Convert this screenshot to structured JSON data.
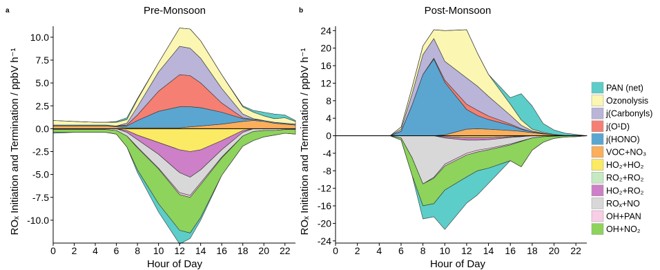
{
  "panels": {
    "a": {
      "letter": "a"
    },
    "b": {
      "letter": "b"
    }
  },
  "legend": {
    "items": [
      {
        "key": "pan",
        "label": "PAN (net)",
        "color": "#5ccdc8"
      },
      {
        "key": "ozo",
        "label": "Ozonolysis",
        "color": "#fbf6b1"
      },
      {
        "key": "carb",
        "label": "j(Carbonyls)",
        "color": "#b9b4d8"
      },
      {
        "key": "o1d",
        "label": "j(O¹D)",
        "color": "#f57f72"
      },
      {
        "key": "hono",
        "label": "j(HONO)",
        "color": "#5aa6d1"
      },
      {
        "key": "vocno3",
        "label": "VOC+NO₃",
        "color": "#fbae5b"
      },
      {
        "key": "ho2ho2",
        "label": "HO₂+HO₂",
        "color": "#fbea63"
      },
      {
        "key": "ro2ro2",
        "label": "RO₂+RO₂",
        "color": "#c6e9c2"
      },
      {
        "key": "ho2ro2",
        "label": "HO₂+RO₂",
        "color": "#cd7fc7"
      },
      {
        "key": "roxno",
        "label": "ROₓ+NO",
        "color": "#d8d8d8"
      },
      {
        "key": "ohpan",
        "label": "OH+PAN",
        "color": "#f8cde6"
      },
      {
        "key": "ohno2",
        "label": "OH+NO₂",
        "color": "#8dd35c"
      }
    ]
  },
  "chart_data": [
    {
      "type": "area",
      "title": "Pre-Monsoon",
      "xlabel": "Hour of Day",
      "ylabel": "ROₓ Initiation and Termination / ppbV h⁻¹",
      "xlim": [
        0,
        23
      ],
      "ylim": [
        -12.5,
        11.2
      ],
      "xticks": [
        0,
        2,
        4,
        6,
        8,
        10,
        12,
        14,
        16,
        18,
        20,
        22
      ],
      "yticks": [
        -10.0,
        -7.5,
        -5.0,
        -2.5,
        0.0,
        2.5,
        5.0,
        7.5,
        10.0
      ],
      "ytick_labels": [
        "-10.0",
        "-7.5",
        "-5.0",
        "-2.5",
        "0.0",
        "2.5",
        "5.0",
        "7.5",
        "10.0"
      ],
      "x": [
        0,
        2,
        4,
        5,
        6,
        7,
        8,
        10,
        12,
        13,
        14,
        16,
        18,
        19,
        20,
        21,
        22,
        23
      ],
      "positive_series": [
        {
          "key": "vocno3",
          "values": [
            0.3,
            0.3,
            0.3,
            0.3,
            0.2,
            0.1,
            0.1,
            0.1,
            0.1,
            0.2,
            0.3,
            0.5,
            0.8,
            0.9,
            0.8,
            0.6,
            0.5,
            0.4
          ]
        },
        {
          "key": "hono",
          "values": [
            0.1,
            0.1,
            0.1,
            0.1,
            0.1,
            0.2,
            0.8,
            1.8,
            2.3,
            2.2,
            2.0,
            1.3,
            0.3,
            0.1,
            0.1,
            0.1,
            0.1,
            0.1
          ]
        },
        {
          "key": "o1d",
          "values": [
            0,
            0,
            0,
            0,
            0,
            0.1,
            0.6,
            2.2,
            3.5,
            3.4,
            2.7,
            1.0,
            0.1,
            0,
            0,
            0,
            0,
            0
          ]
        },
        {
          "key": "carb",
          "values": [
            0,
            0,
            0,
            0,
            0,
            0.2,
            0.9,
            2.1,
            3.1,
            3.0,
            2.7,
            1.6,
            0.4,
            0.1,
            0,
            0,
            0,
            0
          ]
        },
        {
          "key": "ozo",
          "values": [
            0.5,
            0.4,
            0.3,
            0.3,
            0.4,
            0.4,
            0.8,
            1.0,
            2.0,
            2.1,
            1.9,
            1.5,
            0.8,
            0.7,
            0.5,
            0.4,
            0.6,
            0.3
          ]
        },
        {
          "key": "pan",
          "values": [
            0,
            0,
            0,
            0,
            0.1,
            0.2,
            0.1,
            0,
            0,
            0,
            0,
            0,
            0.1,
            0.2,
            0.4,
            0.5,
            0.3,
            0.1
          ]
        }
      ],
      "negative_series": [
        {
          "key": "ho2ho2",
          "values": [
            0,
            0,
            0,
            0,
            0,
            -0.2,
            -0.7,
            -1.5,
            -2.3,
            -2.5,
            -2.3,
            -1.3,
            -0.2,
            0,
            0,
            0,
            0,
            0
          ]
        },
        {
          "key": "ho2ro2",
          "values": [
            0,
            0,
            0,
            0,
            0,
            -0.2,
            -0.5,
            -1.3,
            -2.5,
            -2.8,
            -2.2,
            -1.0,
            -0.2,
            0,
            0,
            0,
            0,
            0
          ]
        },
        {
          "key": "roxno",
          "values": [
            -0.1,
            -0.1,
            -0.1,
            -0.1,
            -0.2,
            -0.4,
            -0.8,
            -1.5,
            -2.2,
            -2.0,
            -1.4,
            -0.8,
            -0.4,
            -0.3,
            -0.2,
            -0.2,
            -0.1,
            -0.1
          ]
        },
        {
          "key": "ohpan",
          "values": [
            0,
            0,
            0,
            0,
            0,
            0,
            -0.1,
            -0.1,
            -0.2,
            -0.2,
            -0.2,
            -0.1,
            0,
            0,
            0,
            0,
            0,
            0
          ]
        },
        {
          "key": "ohno2",
          "values": [
            -0.3,
            -0.3,
            -0.3,
            -0.3,
            -0.4,
            -1.2,
            -2.4,
            -3.8,
            -3.9,
            -3.9,
            -3.6,
            -1.9,
            -1.1,
            -1.0,
            -0.7,
            -0.5,
            -0.4,
            -0.5
          ]
        },
        {
          "key": "pan",
          "values": [
            -0.1,
            0,
            0,
            0,
            0,
            0,
            -0.3,
            -0.9,
            -1.5,
            -0.6,
            -0.3,
            0,
            0,
            0,
            0,
            0,
            0,
            0
          ]
        }
      ]
    },
    {
      "type": "area",
      "title": "Post-Monsoon",
      "xlabel": "Hour of Day",
      "ylabel": "ROₓ Initiation and Termination / ppbV h⁻¹",
      "xlim": [
        0,
        23
      ],
      "ylim": [
        -24.5,
        25
      ],
      "xticks": [
        0,
        2,
        4,
        6,
        8,
        10,
        12,
        14,
        16,
        18,
        20,
        22
      ],
      "yticks": [
        -24,
        -20,
        -16,
        -12,
        -8,
        -4,
        0,
        4,
        8,
        12,
        16,
        20,
        24
      ],
      "ytick_labels": [
        "-24",
        "-20",
        "-16",
        "-12",
        "-8",
        "-4",
        "0",
        "4",
        "8",
        "12",
        "16",
        "20",
        "24"
      ],
      "x": [
        0,
        2,
        4,
        5,
        6,
        7,
        8,
        9,
        10,
        12,
        13,
        14,
        16,
        17,
        18,
        19,
        20,
        21,
        22,
        23
      ],
      "positive_series": [
        {
          "key": "vocno3",
          "values": [
            0,
            0,
            0,
            0,
            0,
            0,
            0,
            0,
            0.2,
            1.5,
            1.6,
            1.5,
            1.2,
            1.0,
            0.7,
            0.4,
            0.2,
            0.1,
            0.1,
            0
          ]
        },
        {
          "key": "hono",
          "values": [
            0,
            0,
            0,
            0,
            1.0,
            7.0,
            14.0,
            17.5,
            12.0,
            4.5,
            3.0,
            2.2,
            1.2,
            0.5,
            0.2,
            0.1,
            0,
            0,
            0,
            0
          ]
        },
        {
          "key": "o1d",
          "values": [
            0,
            0,
            0,
            0,
            0,
            0,
            0,
            0.2,
            0.5,
            1.2,
            1.2,
            0.8,
            0.3,
            0.1,
            0,
            0,
            0,
            0,
            0,
            0
          ]
        },
        {
          "key": "carb",
          "values": [
            0,
            0,
            0,
            0,
            0.5,
            2.5,
            4.5,
            4.5,
            4.3,
            6.0,
            5.5,
            4.5,
            2.0,
            0.8,
            0.2,
            0.1,
            0,
            0,
            0,
            0
          ]
        },
        {
          "key": "ozo",
          "values": [
            0,
            0,
            0,
            0,
            0.5,
            1.5,
            2.0,
            2.0,
            7.0,
            11.0,
            7.5,
            5.0,
            2.5,
            1.2,
            0.4,
            0.2,
            0.1,
            0,
            0,
            0
          ]
        },
        {
          "key": "pan",
          "values": [
            0,
            0,
            0,
            0,
            0,
            0,
            0,
            0,
            0,
            0,
            0,
            0,
            1.5,
            6.0,
            5.3,
            2.0,
            1.0,
            0.5,
            0.2,
            0
          ]
        }
      ],
      "negative_series": [
        {
          "key": "ho2ho2",
          "values": [
            0,
            0,
            0,
            0,
            0,
            0,
            0,
            0,
            -0.2,
            -0.4,
            -0.4,
            -0.4,
            -0.2,
            -0.1,
            0,
            0,
            0,
            0,
            0,
            0
          ]
        },
        {
          "key": "ho2ro2",
          "values": [
            0,
            0,
            0,
            0,
            0,
            0,
            0,
            0,
            -0.3,
            -0.6,
            -0.6,
            -0.5,
            -0.2,
            -0.1,
            0,
            0,
            0,
            0,
            0,
            0
          ]
        },
        {
          "key": "roxno",
          "values": [
            0,
            0,
            0,
            0,
            -0.5,
            -5.0,
            -11.0,
            -9.5,
            -6.0,
            -3.0,
            -2.3,
            -2.0,
            -1.5,
            -1.0,
            -0.5,
            -0.2,
            -0.1,
            0,
            0,
            0
          ]
        },
        {
          "key": "ohpan",
          "values": [
            0,
            0,
            0,
            0,
            0,
            0,
            0,
            -0.2,
            -0.4,
            -0.4,
            -0.4,
            -0.3,
            -0.2,
            -0.1,
            0,
            0,
            0,
            0,
            0,
            0
          ]
        },
        {
          "key": "ohno2",
          "values": [
            0,
            0,
            0,
            0,
            -0.5,
            -4.0,
            -5.0,
            -5.8,
            -5.5,
            -5.0,
            -4.3,
            -4.2,
            -3.6,
            -5.8,
            -2.8,
            -1.3,
            -0.5,
            -0.3,
            -0.2,
            0
          ]
        },
        {
          "key": "pan",
          "values": [
            0,
            0,
            0,
            0,
            0,
            0,
            -3.0,
            -3.0,
            -9.0,
            -6.0,
            -5.5,
            -3.5,
            0,
            0,
            0,
            0,
            0,
            0,
            0,
            0
          ]
        }
      ]
    }
  ]
}
